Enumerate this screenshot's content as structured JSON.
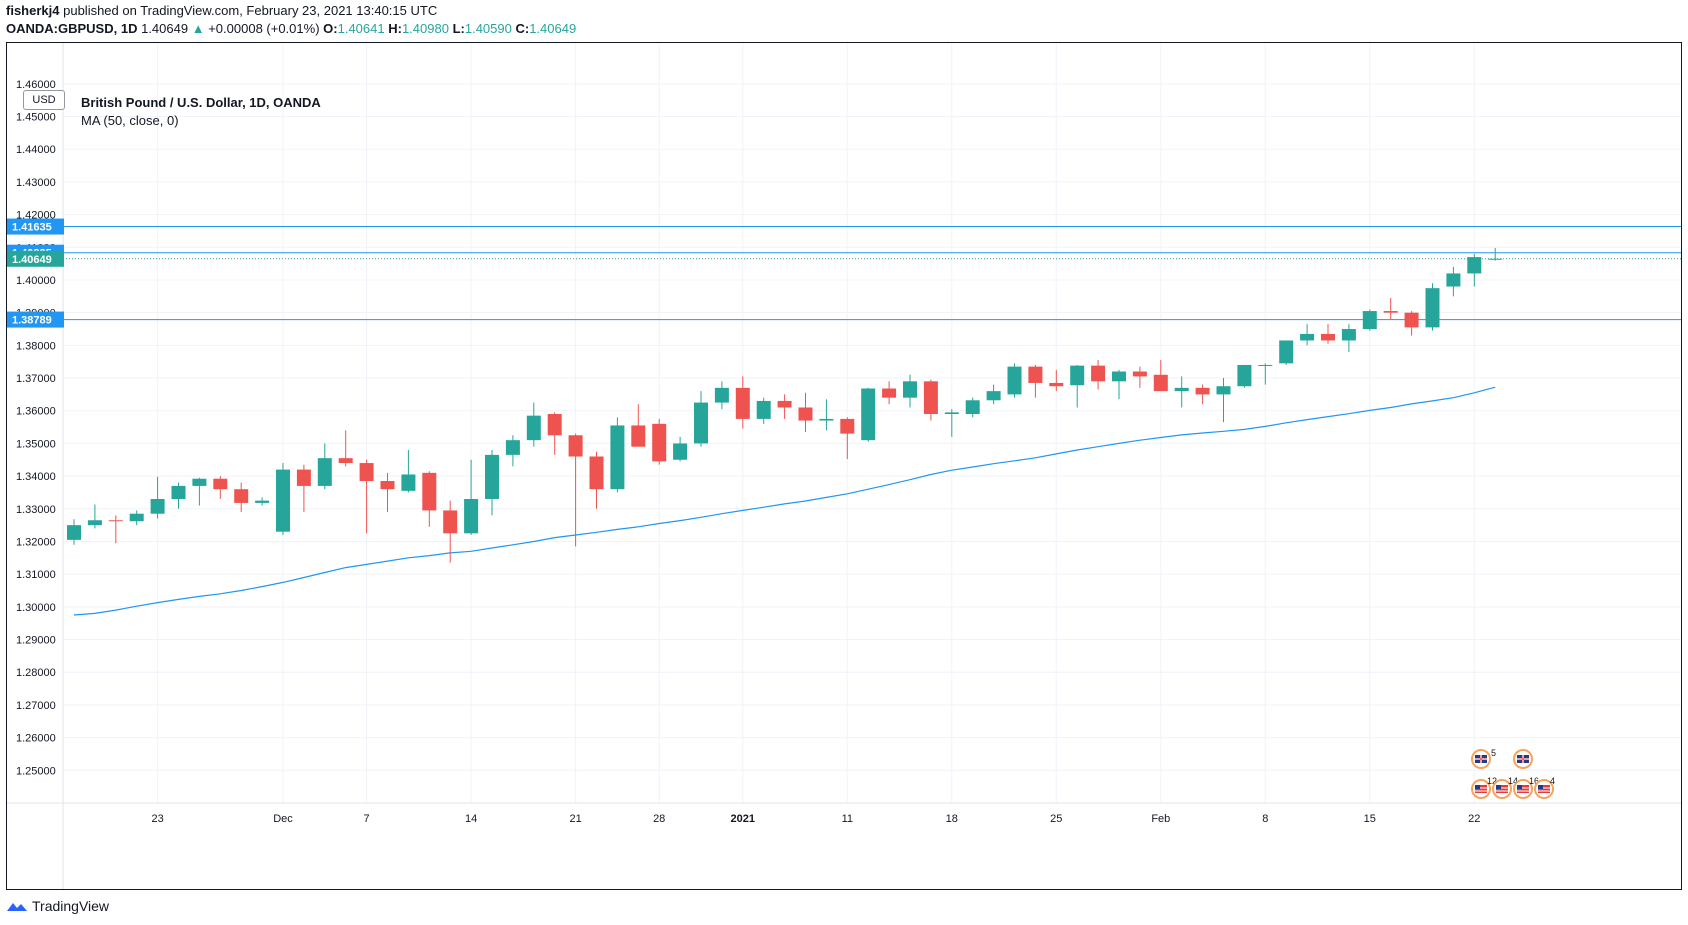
{
  "header": {
    "author": "fisherkj4",
    "published_text": "published on TradingView.com, February 23, 2021 13:40:15 UTC",
    "symbol": "OANDA:GBPUSD, 1D",
    "last": "1.40649",
    "arrow": "▲",
    "change": "+0.00008 (+0.01%)",
    "o_label": "O:",
    "o_value": "1.40641",
    "h_label": "H:",
    "h_value": "1.40980",
    "l_label": "L:",
    "l_value": "1.40590",
    "c_label": "C:",
    "c_value": "1.40649"
  },
  "currency_badge": "USD",
  "legend": {
    "title": "British Pound / U.S. Dollar, 1D, OANDA",
    "indicator": "MA (50, close, 0)"
  },
  "footer": {
    "brand": "TradingView"
  },
  "colors": {
    "up": "#26a69a",
    "down": "#ef5350",
    "ma": "#2196f3",
    "level": "#2196f3",
    "grid": "#f0f3fa",
    "axis_text": "#131722"
  },
  "events": {
    "uk_top_count": "5",
    "us_counts": [
      "12",
      "14",
      "16",
      "4"
    ]
  },
  "chart_data": {
    "type": "candlestick",
    "title": "British Pound / U.S. Dollar, 1D, OANDA",
    "ylim": [
      1.24,
      1.4725
    ],
    "y_ticks": [
      "1.25000",
      "1.26000",
      "1.27000",
      "1.28000",
      "1.29000",
      "1.30000",
      "1.31000",
      "1.32000",
      "1.33000",
      "1.34000",
      "1.35000",
      "1.36000",
      "1.37000",
      "1.38000",
      "1.39000",
      "1.40000",
      "1.41000",
      "1.42000",
      "1.43000",
      "1.44000",
      "1.45000",
      "1.46000"
    ],
    "x_ticks": [
      {
        "label": "23",
        "index": 4
      },
      {
        "label": "Dec",
        "index": 10
      },
      {
        "label": "7",
        "index": 14
      },
      {
        "label": "14",
        "index": 19
      },
      {
        "label": "21",
        "index": 24
      },
      {
        "label": "28",
        "index": 28
      },
      {
        "label": "2021",
        "index": 32
      },
      {
        "label": "11",
        "index": 37
      },
      {
        "label": "18",
        "index": 42
      },
      {
        "label": "25",
        "index": 47
      },
      {
        "label": "Feb",
        "index": 52
      },
      {
        "label": "8",
        "index": 57
      },
      {
        "label": "15",
        "index": 62
      },
      {
        "label": "22",
        "index": 67
      }
    ],
    "dates": [
      "2020-11-17",
      "2020-11-18",
      "2020-11-19",
      "2020-11-20",
      "2020-11-23",
      "2020-11-24",
      "2020-11-25",
      "2020-11-26",
      "2020-11-27",
      "2020-11-30",
      "2020-12-01",
      "2020-12-02",
      "2020-12-03",
      "2020-12-04",
      "2020-12-07",
      "2020-12-08",
      "2020-12-09",
      "2020-12-10",
      "2020-12-11",
      "2020-12-14",
      "2020-12-15",
      "2020-12-16",
      "2020-12-17",
      "2020-12-18",
      "2020-12-21",
      "2020-12-22",
      "2020-12-23",
      "2020-12-24",
      "2020-12-28",
      "2020-12-29",
      "2020-12-30",
      "2020-12-31",
      "2021-01-04",
      "2021-01-05",
      "2021-01-06",
      "2021-01-07",
      "2021-01-08",
      "2021-01-11",
      "2021-01-12",
      "2021-01-13",
      "2021-01-14",
      "2021-01-15",
      "2021-01-18",
      "2021-01-19",
      "2021-01-20",
      "2021-01-21",
      "2021-01-22",
      "2021-01-25",
      "2021-01-26",
      "2021-01-27",
      "2021-01-28",
      "2021-01-29",
      "2021-02-01",
      "2021-02-02",
      "2021-02-03",
      "2021-02-04",
      "2021-02-05",
      "2021-02-08",
      "2021-02-09",
      "2021-02-10",
      "2021-02-11",
      "2021-02-12",
      "2021-02-15",
      "2021-02-16",
      "2021-02-17",
      "2021-02-18",
      "2021-02-19",
      "2021-02-22",
      "2021-02-23"
    ],
    "ohlc": [
      [
        1.3205,
        1.3268,
        1.319,
        1.325
      ],
      [
        1.325,
        1.3313,
        1.324,
        1.3265
      ],
      [
        1.3265,
        1.328,
        1.3195,
        1.3262
      ],
      [
        1.3262,
        1.3295,
        1.325,
        1.3285
      ],
      [
        1.3285,
        1.3398,
        1.327,
        1.333
      ],
      [
        1.333,
        1.338,
        1.33,
        1.337
      ],
      [
        1.337,
        1.3395,
        1.331,
        1.3392
      ],
      [
        1.3392,
        1.34,
        1.333,
        1.336
      ],
      [
        1.336,
        1.338,
        1.329,
        1.3318
      ],
      [
        1.3318,
        1.3335,
        1.331,
        1.3325
      ],
      [
        1.323,
        1.344,
        1.322,
        1.342
      ],
      [
        1.342,
        1.3435,
        1.329,
        1.337
      ],
      [
        1.337,
        1.35,
        1.336,
        1.3455
      ],
      [
        1.3455,
        1.354,
        1.343,
        1.344
      ],
      [
        1.344,
        1.345,
        1.3225,
        1.3385
      ],
      [
        1.3385,
        1.341,
        1.329,
        1.336
      ],
      [
        1.3355,
        1.348,
        1.335,
        1.3405
      ],
      [
        1.341,
        1.3415,
        1.3245,
        1.3295
      ],
      [
        1.3295,
        1.3325,
        1.3135,
        1.3225
      ],
      [
        1.3225,
        1.345,
        1.322,
        1.333
      ],
      [
        1.333,
        1.348,
        1.328,
        1.3465
      ],
      [
        1.3465,
        1.3525,
        1.343,
        1.351
      ],
      [
        1.351,
        1.3625,
        1.349,
        1.3585
      ],
      [
        1.359,
        1.3595,
        1.3465,
        1.3525
      ],
      [
        1.3525,
        1.353,
        1.3185,
        1.346
      ],
      [
        1.346,
        1.3475,
        1.33,
        1.336
      ],
      [
        1.336,
        1.358,
        1.335,
        1.3555
      ],
      [
        1.3555,
        1.362,
        1.349,
        1.349
      ],
      [
        1.356,
        1.3575,
        1.3435,
        1.3445
      ],
      [
        1.345,
        1.352,
        1.3445,
        1.35
      ],
      [
        1.35,
        1.366,
        1.349,
        1.3625
      ],
      [
        1.3625,
        1.369,
        1.3605,
        1.367
      ],
      [
        1.367,
        1.3705,
        1.3545,
        1.3575
      ],
      [
        1.3575,
        1.364,
        1.356,
        1.363
      ],
      [
        1.363,
        1.365,
        1.3575,
        1.361
      ],
      [
        1.361,
        1.3655,
        1.3535,
        1.357
      ],
      [
        1.357,
        1.3635,
        1.354,
        1.3575
      ],
      [
        1.3575,
        1.358,
        1.3452,
        1.353
      ],
      [
        1.351,
        1.367,
        1.3505,
        1.3668
      ],
      [
        1.3668,
        1.369,
        1.362,
        1.364
      ],
      [
        1.364,
        1.371,
        1.361,
        1.369
      ],
      [
        1.369,
        1.3695,
        1.357,
        1.359
      ],
      [
        1.359,
        1.3605,
        1.352,
        1.3595
      ],
      [
        1.359,
        1.364,
        1.358,
        1.3632
      ],
      [
        1.3632,
        1.368,
        1.362,
        1.366
      ],
      [
        1.365,
        1.3745,
        1.364,
        1.3735
      ],
      [
        1.3735,
        1.374,
        1.364,
        1.3685
      ],
      [
        1.3685,
        1.3725,
        1.366,
        1.3675
      ],
      [
        1.3678,
        1.374,
        1.361,
        1.3738
      ],
      [
        1.3738,
        1.3755,
        1.3665,
        1.369
      ],
      [
        1.369,
        1.3725,
        1.3635,
        1.372
      ],
      [
        1.372,
        1.3735,
        1.367,
        1.3705
      ],
      [
        1.371,
        1.3755,
        1.366,
        1.366
      ],
      [
        1.366,
        1.3705,
        1.361,
        1.367
      ],
      [
        1.367,
        1.368,
        1.362,
        1.365
      ],
      [
        1.365,
        1.37,
        1.3565,
        1.3675
      ],
      [
        1.3675,
        1.374,
        1.367,
        1.374
      ],
      [
        1.374,
        1.3745,
        1.368,
        1.374
      ],
      [
        1.3745,
        1.3815,
        1.374,
        1.3815
      ],
      [
        1.3815,
        1.3865,
        1.38,
        1.3835
      ],
      [
        1.3835,
        1.3865,
        1.3805,
        1.3815
      ],
      [
        1.3815,
        1.3865,
        1.378,
        1.385
      ],
      [
        1.385,
        1.391,
        1.3845,
        1.3905
      ],
      [
        1.3905,
        1.3945,
        1.388,
        1.39
      ],
      [
        1.39,
        1.3905,
        1.383,
        1.3855
      ],
      [
        1.3855,
        1.399,
        1.3845,
        1.3975
      ],
      [
        1.398,
        1.404,
        1.395,
        1.402
      ],
      [
        1.402,
        1.408,
        1.398,
        1.407
      ],
      [
        1.4064,
        1.4098,
        1.4059,
        1.4065
      ]
    ],
    "ma": [
      1.2975,
      1.298,
      1.299,
      1.3002,
      1.3013,
      1.3023,
      1.3032,
      1.304,
      1.305,
      1.3062,
      1.3075,
      1.309,
      1.3105,
      1.312,
      1.313,
      1.314,
      1.315,
      1.3157,
      1.3165,
      1.317,
      1.318,
      1.319,
      1.32,
      1.3212,
      1.322,
      1.3228,
      1.3237,
      1.3245,
      1.3255,
      1.3264,
      1.3274,
      1.3285,
      1.3295,
      1.3305,
      1.3315,
      1.3324,
      1.3335,
      1.3346,
      1.336,
      1.3374,
      1.3389,
      1.3405,
      1.3418,
      1.3428,
      1.3438,
      1.3447,
      1.3456,
      1.3468,
      1.348,
      1.349,
      1.35,
      1.351,
      1.3518,
      1.3526,
      1.3532,
      1.3537,
      1.3543,
      1.3552,
      1.3563,
      1.3573,
      1.3582,
      1.3591,
      1.3601,
      1.361,
      1.3621,
      1.363,
      1.364,
      1.3655,
      1.3672
    ],
    "levels": [
      {
        "value": 1.41635,
        "label": "1.41635"
      },
      {
        "value": 1.40835,
        "label": "1.40835"
      },
      {
        "value": 1.38789,
        "label": "1.38789"
      }
    ],
    "last_price": {
      "value": 1.40649,
      "label": "1.40649"
    },
    "legend": [
      "British Pound / U.S. Dollar, 1D, OANDA",
      "MA (50, close, 0)"
    ],
    "grid": true
  }
}
